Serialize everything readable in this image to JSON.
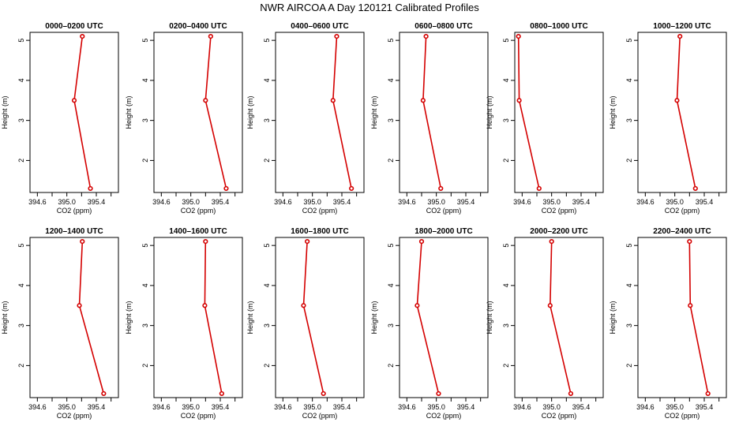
{
  "figure": {
    "title": "NWR AIRCOA A  Day 120121  Calibrated Profiles",
    "series_color": "#d40000"
  },
  "chart_data": [
    {
      "type": "line",
      "title": "0000–0200 UTC",
      "xlabel": "CO2 (ppm)",
      "ylabel": "Height (m)",
      "xlim": [
        394.5,
        395.7
      ],
      "ylim": [
        1.2,
        5.2
      ],
      "xticks": [
        "394.6",
        "395.0",
        "395.4"
      ],
      "yticks": [
        "2",
        "3",
        "4",
        "5"
      ],
      "series": [
        {
          "x": [
            395.32,
            395.1,
            395.21
          ],
          "y": [
            1.3,
            3.5,
            5.1
          ]
        }
      ]
    },
    {
      "type": "line",
      "title": "0200–0400 UTC",
      "xlabel": "CO2 (ppm)",
      "ylabel": "Height (m)",
      "xlim": [
        394.5,
        395.7
      ],
      "ylim": [
        1.2,
        5.2
      ],
      "xticks": [
        "394.6",
        "395.0",
        "395.4"
      ],
      "yticks": [
        "2",
        "3",
        "4",
        "5"
      ],
      "series": [
        {
          "x": [
            395.48,
            395.2,
            395.27
          ],
          "y": [
            1.3,
            3.5,
            5.1
          ]
        }
      ]
    },
    {
      "type": "line",
      "title": "0400–0600 UTC",
      "xlabel": "CO2 (ppm)",
      "ylabel": "Height (m)",
      "xlim": [
        394.5,
        395.7
      ],
      "ylim": [
        1.2,
        5.2
      ],
      "xticks": [
        "394.6",
        "395.0",
        "395.4"
      ],
      "yticks": [
        "2",
        "3",
        "4",
        "5"
      ],
      "series": [
        {
          "x": [
            395.53,
            395.28,
            395.33
          ],
          "y": [
            1.3,
            3.5,
            5.1
          ]
        }
      ]
    },
    {
      "type": "line",
      "title": "0600–0800 UTC",
      "xlabel": "CO2 (ppm)",
      "ylabel": "Height (m)",
      "xlim": [
        394.5,
        395.7
      ],
      "ylim": [
        1.2,
        5.2
      ],
      "xticks": [
        "394.6",
        "395.0",
        "395.4"
      ],
      "yticks": [
        "2",
        "3",
        "4",
        "5"
      ],
      "series": [
        {
          "x": [
            395.06,
            394.82,
            394.86
          ],
          "y": [
            1.3,
            3.5,
            5.1
          ]
        }
      ]
    },
    {
      "type": "line",
      "title": "0800–1000 UTC",
      "xlabel": "CO2 (ppm)",
      "ylabel": "Height (m)",
      "xlim": [
        394.5,
        395.7
      ],
      "ylim": [
        1.2,
        5.2
      ],
      "xticks": [
        "394.6",
        "395.0",
        "395.4"
      ],
      "yticks": [
        "2",
        "3",
        "4",
        "5"
      ],
      "series": [
        {
          "x": [
            394.83,
            394.56,
            394.55
          ],
          "y": [
            1.3,
            3.5,
            5.1
          ]
        }
      ]
    },
    {
      "type": "line",
      "title": "1000–1200 UTC",
      "xlabel": "CO2 (ppm)",
      "ylabel": "Height (m)",
      "xlim": [
        394.5,
        395.7
      ],
      "ylim": [
        1.2,
        5.2
      ],
      "xticks": [
        "394.6",
        "395.0",
        "395.4"
      ],
      "yticks": [
        "2",
        "3",
        "4",
        "5"
      ],
      "series": [
        {
          "x": [
            395.28,
            395.03,
            395.07
          ],
          "y": [
            1.3,
            3.5,
            5.1
          ]
        }
      ]
    },
    {
      "type": "line",
      "title": "1200–1400 UTC",
      "xlabel": "CO2 (ppm)",
      "ylabel": "Height (m)",
      "xlim": [
        394.5,
        395.7
      ],
      "ylim": [
        1.2,
        5.2
      ],
      "xticks": [
        "394.6",
        "395.0",
        "395.4"
      ],
      "yticks": [
        "2",
        "3",
        "4",
        "5"
      ],
      "series": [
        {
          "x": [
            395.5,
            395.17,
            395.21
          ],
          "y": [
            1.3,
            3.5,
            5.1
          ]
        }
      ]
    },
    {
      "type": "line",
      "title": "1400–1600 UTC",
      "xlabel": "CO2 (ppm)",
      "ylabel": "Height (m)",
      "xlim": [
        394.5,
        395.7
      ],
      "ylim": [
        1.2,
        5.2
      ],
      "xticks": [
        "394.6",
        "395.0",
        "395.4"
      ],
      "yticks": [
        "2",
        "3",
        "4",
        "5"
      ],
      "series": [
        {
          "x": [
            395.42,
            395.19,
            395.2
          ],
          "y": [
            1.3,
            3.5,
            5.1
          ]
        }
      ]
    },
    {
      "type": "line",
      "title": "1600–1800 UTC",
      "xlabel": "CO2 (ppm)",
      "ylabel": "Height (m)",
      "xlim": [
        394.5,
        395.7
      ],
      "ylim": [
        1.2,
        5.2
      ],
      "xticks": [
        "394.6",
        "395.0",
        "395.4"
      ],
      "yticks": [
        "2",
        "3",
        "4",
        "5"
      ],
      "series": [
        {
          "x": [
            395.15,
            394.88,
            394.93
          ],
          "y": [
            1.3,
            3.5,
            5.1
          ]
        }
      ]
    },
    {
      "type": "line",
      "title": "1800–2000 UTC",
      "xlabel": "CO2 (ppm)",
      "ylabel": "Height (m)",
      "xlim": [
        394.5,
        395.7
      ],
      "ylim": [
        1.2,
        5.2
      ],
      "xticks": [
        "394.6",
        "395.0",
        "395.4"
      ],
      "yticks": [
        "2",
        "3",
        "4",
        "5"
      ],
      "series": [
        {
          "x": [
            395.03,
            394.74,
            394.8
          ],
          "y": [
            1.3,
            3.5,
            5.1
          ]
        }
      ]
    },
    {
      "type": "line",
      "title": "2000–2200 UTC",
      "xlabel": "CO2 (ppm)",
      "ylabel": "Height (m)",
      "xlim": [
        394.5,
        395.7
      ],
      "ylim": [
        1.2,
        5.2
      ],
      "xticks": [
        "394.6",
        "395.0",
        "395.4"
      ],
      "yticks": [
        "2",
        "3",
        "4",
        "5"
      ],
      "series": [
        {
          "x": [
            395.26,
            394.98,
            395.0
          ],
          "y": [
            1.3,
            3.5,
            5.1
          ]
        }
      ]
    },
    {
      "type": "line",
      "title": "2200–2400 UTC",
      "xlabel": "CO2 (ppm)",
      "ylabel": "Height (m)",
      "xlim": [
        394.5,
        395.7
      ],
      "ylim": [
        1.2,
        5.2
      ],
      "xticks": [
        "394.6",
        "395.0",
        "395.4"
      ],
      "yticks": [
        "2",
        "3",
        "4",
        "5"
      ],
      "series": [
        {
          "x": [
            395.45,
            395.21,
            395.2
          ],
          "y": [
            1.3,
            3.5,
            5.1
          ]
        }
      ]
    }
  ]
}
